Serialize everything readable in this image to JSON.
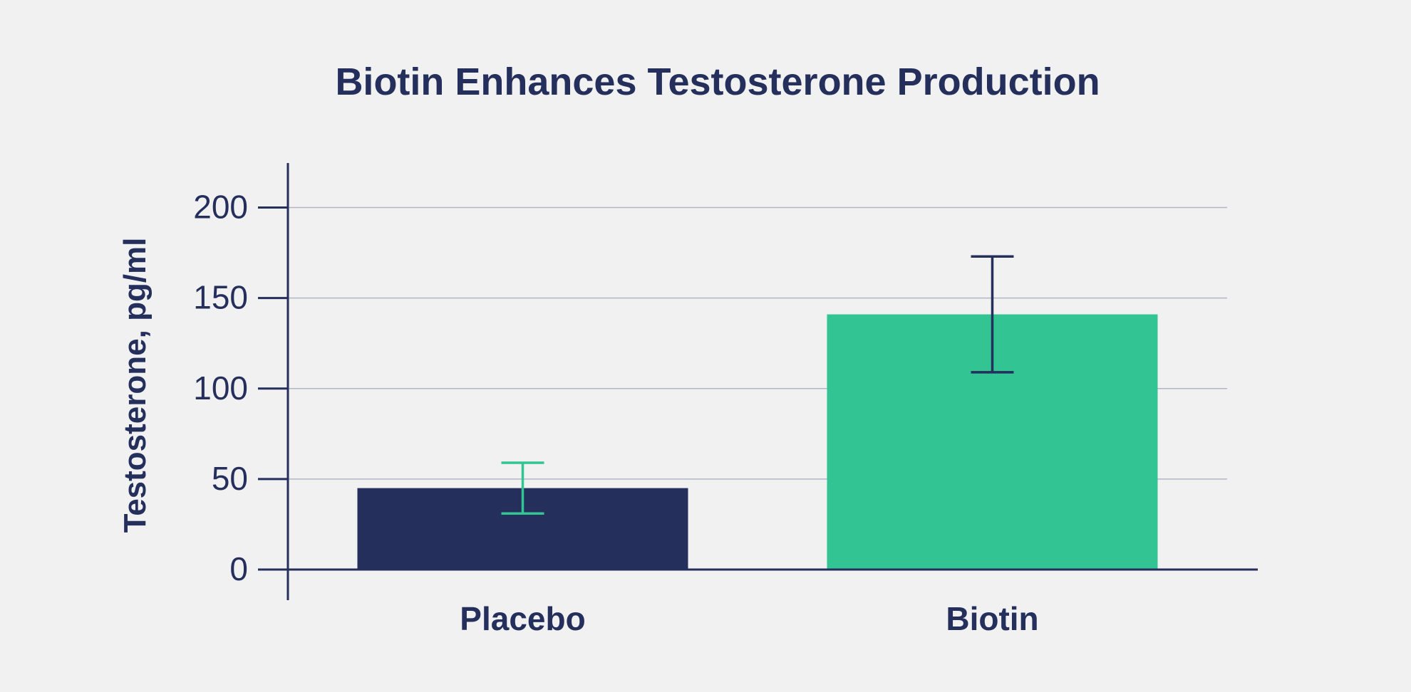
{
  "chart_data": {
    "type": "bar",
    "title": "Biotin Enhances Testosterone Production",
    "ylabel": "Testosterone, pg/ml",
    "xlabel": "",
    "ylim": [
      0,
      225
    ],
    "yticks": [
      0,
      50,
      100,
      150,
      200
    ],
    "ytick_labels": [
      "0",
      "50",
      "100",
      "150",
      "200"
    ],
    "grid": true,
    "categories": [
      "Placebo",
      "Biotin"
    ],
    "values": [
      45,
      141
    ],
    "error_bars": [
      {
        "low": 31,
        "high": 59
      },
      {
        "low": 109,
        "high": 173
      }
    ],
    "bar_colors": [
      "#252f5c",
      "#33c494"
    ],
    "error_colors": [
      "#33c494",
      "#252f5c"
    ]
  },
  "colors": {
    "background": "#f1f1f1",
    "text": "#252f5c",
    "axis": "#252f5c",
    "grid": "#b3b5c6"
  }
}
